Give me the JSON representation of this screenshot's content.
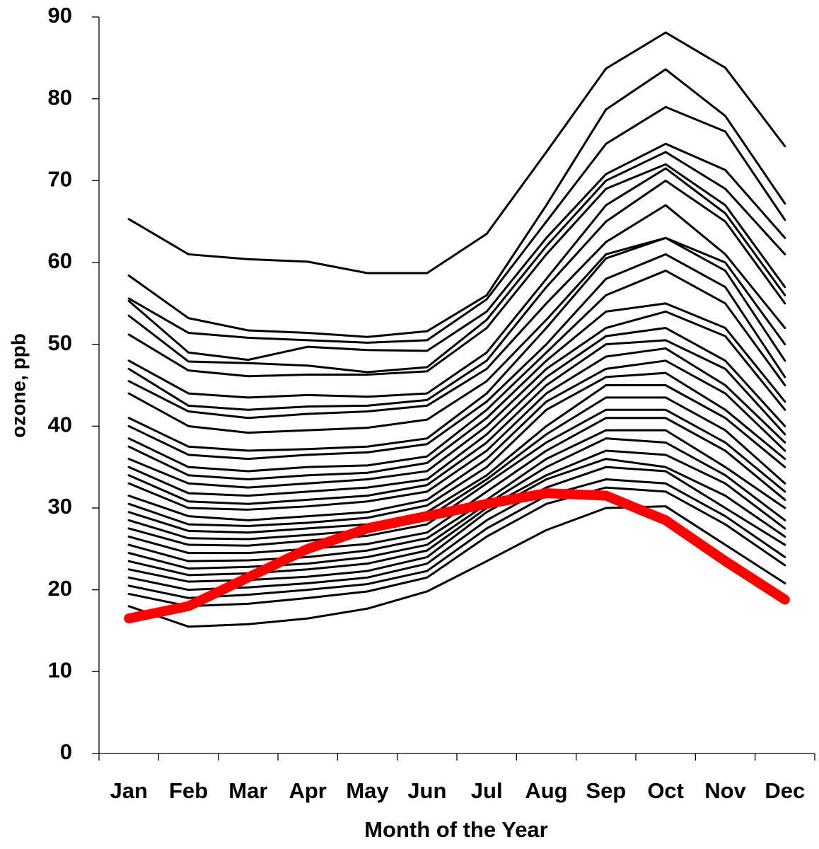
{
  "chart_data": {
    "type": "line",
    "x_label": "Month of the Year",
    "y_label": "ozone, ppb",
    "categories": [
      "Jan",
      "Feb",
      "Mar",
      "Apr",
      "May",
      "Jun",
      "Jul",
      "Aug",
      "Sep",
      "Oct",
      "Nov",
      "Dec"
    ],
    "ylim": [
      0,
      90
    ],
    "yticks": [
      0,
      10,
      20,
      30,
      40,
      50,
      60,
      70,
      80,
      90
    ],
    "series": [
      {
        "color": "#000000",
        "values": [
          65.3,
          61,
          60.4,
          60.1,
          58.7,
          58.7,
          63.5,
          73.5,
          83.7,
          88.1,
          83.8,
          74.2
        ]
      },
      {
        "color": "#000000",
        "values": [
          58.4,
          53.2,
          51.7,
          51.4,
          50.9,
          51.6,
          56,
          67,
          78.7,
          83.6,
          77.9,
          67.2
        ]
      },
      {
        "color": "#000000",
        "values": [
          55.6,
          51.4,
          50.8,
          50.5,
          50.2,
          50.5,
          55.5,
          65,
          74.5,
          79,
          76,
          65.2
        ]
      },
      {
        "color": "#000000",
        "values": [
          55.3,
          49,
          48.1,
          49.7,
          49.3,
          49.2,
          54,
          63,
          70.8,
          74.5,
          71.3,
          63
        ]
      },
      {
        "color": "#000000",
        "values": [
          53.5,
          47.9,
          47.7,
          47.4,
          46.6,
          47.2,
          53,
          62,
          70,
          73.5,
          69,
          61
        ]
      },
      {
        "color": "#000000",
        "values": [
          51.2,
          46.8,
          46.1,
          46.3,
          46.3,
          46.7,
          52,
          61,
          69,
          72,
          67,
          57
        ]
      },
      {
        "color": "#000000",
        "values": [
          48,
          44,
          43.5,
          43.8,
          43.6,
          44,
          49,
          58,
          67,
          71.5,
          66,
          56
        ]
      },
      {
        "color": "#000000",
        "values": [
          47,
          42.5,
          42,
          42.4,
          42.5,
          43.2,
          48,
          57,
          65,
          70,
          65,
          55
        ]
      },
      {
        "color": "#000000",
        "values": [
          45.5,
          41.8,
          41,
          41.5,
          41.8,
          42.5,
          47,
          55,
          62.5,
          67,
          61,
          52
        ]
      },
      {
        "color": "#000000",
        "values": [
          44,
          40,
          39.2,
          39.5,
          39.8,
          40.8,
          45.5,
          53,
          61,
          63,
          60,
          50
        ]
      },
      {
        "color": "#000000",
        "values": [
          41,
          37.5,
          37,
          37.2,
          37.5,
          38.5,
          44,
          52,
          60.5,
          63,
          59,
          48
        ]
      },
      {
        "color": "#000000",
        "values": [
          40,
          36.5,
          36,
          36.5,
          36.8,
          37.8,
          43,
          50,
          58,
          61,
          57,
          46
        ]
      },
      {
        "color": "#000000",
        "values": [
          38.5,
          35,
          34.5,
          35,
          35.2,
          36.3,
          42,
          49,
          56,
          59,
          55,
          45
        ]
      },
      {
        "color": "#000000",
        "values": [
          37.5,
          34,
          33.5,
          34,
          34.3,
          35.5,
          41,
          48,
          54,
          55,
          52,
          43
        ]
      },
      {
        "color": "#000000",
        "values": [
          36,
          33,
          32.5,
          33,
          33.5,
          34.5,
          40,
          47,
          52,
          54,
          51,
          42
        ]
      },
      {
        "color": "#000000",
        "values": [
          35,
          31.8,
          31.5,
          32,
          32.5,
          33.5,
          39,
          46,
          51,
          52,
          48,
          40
        ]
      },
      {
        "color": "#000000",
        "values": [
          34,
          30.8,
          30.5,
          31,
          31.5,
          32.8,
          38,
          45,
          50,
          50.5,
          47,
          39
        ]
      },
      {
        "color": "#000000",
        "values": [
          33,
          30,
          29.8,
          30.2,
          30.8,
          32,
          37,
          44,
          48.5,
          49.5,
          45,
          38
        ]
      },
      {
        "color": "#000000",
        "values": [
          31.5,
          29,
          28.5,
          29,
          29.5,
          31,
          36,
          43,
          47,
          48,
          44,
          37
        ]
      },
      {
        "color": "#000000",
        "values": [
          30.5,
          28,
          27.8,
          28.2,
          28.8,
          30.3,
          35,
          42,
          46,
          46.5,
          42,
          36
        ]
      },
      {
        "color": "#000000",
        "values": [
          29.5,
          27.2,
          27,
          27.5,
          28,
          29.5,
          34,
          40,
          45,
          45,
          41,
          35
        ]
      },
      {
        "color": "#000000",
        "values": [
          28.5,
          26.3,
          26.2,
          26.7,
          27.3,
          28.8,
          33.5,
          39,
          43.5,
          43.5,
          39.5,
          33
        ]
      },
      {
        "color": "#000000",
        "values": [
          27.5,
          25.5,
          25.4,
          26,
          26.6,
          28,
          33,
          38,
          42,
          42,
          38,
          32
        ]
      },
      {
        "color": "#000000",
        "values": [
          26.5,
          24.5,
          24.5,
          25,
          25.6,
          27,
          32,
          37,
          41,
          41,
          37,
          31
        ]
      },
      {
        "color": "#000000",
        "values": [
          25.5,
          23.5,
          23.6,
          24,
          24.8,
          26.3,
          31,
          36,
          39.5,
          39.5,
          35,
          30
        ]
      },
      {
        "color": "#000000",
        "values": [
          24.5,
          22.6,
          22.8,
          23.2,
          24,
          25.5,
          30.5,
          35,
          38.5,
          38,
          34,
          28.5
        ]
      },
      {
        "color": "#000000",
        "values": [
          23.5,
          21.8,
          22,
          22.5,
          23.2,
          24.8,
          30,
          34,
          37,
          36.5,
          33,
          27.5
        ]
      },
      {
        "color": "#000000",
        "values": [
          22.5,
          21,
          21.2,
          21.6,
          22.3,
          24,
          29.5,
          33.5,
          36,
          35,
          31.5,
          26.5
        ]
      },
      {
        "color": "#000000",
        "values": [
          21.5,
          20,
          20.3,
          20.8,
          21.5,
          23.2,
          28.5,
          32.5,
          35,
          34.5,
          30,
          25.5
        ]
      },
      {
        "color": "#000000",
        "values": [
          20.5,
          19,
          19.4,
          20,
          20.7,
          22.3,
          27.5,
          31.5,
          33.5,
          33,
          29,
          24
        ]
      },
      {
        "color": "#000000",
        "values": [
          19.5,
          18,
          18.3,
          19,
          19.8,
          21.5,
          26.5,
          30.5,
          32.5,
          32,
          28,
          23
        ]
      },
      {
        "color": "#000000",
        "values": [
          18,
          15.5,
          15.8,
          16.5,
          17.7,
          19.8,
          23.5,
          27.3,
          30,
          30.2,
          25.5,
          20.8
        ]
      },
      {
        "color": "#ff0000",
        "values": [
          16.5,
          18,
          21.5,
          25,
          27.5,
          29,
          30.5,
          31.8,
          31.5,
          28.5,
          23.5,
          18.8
        ]
      }
    ]
  }
}
